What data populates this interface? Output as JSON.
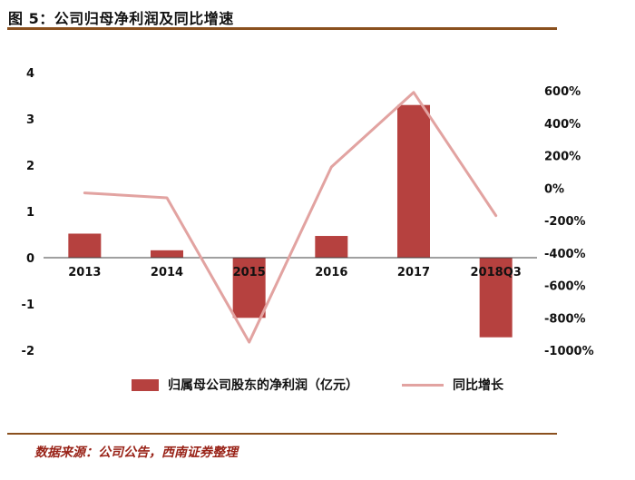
{
  "header": {
    "title": "图 5：公司归母净利润及同比增速"
  },
  "theme": {
    "rule_color": "#8a501e",
    "source_text_color": "#992318"
  },
  "chart_data": {
    "type": "bar+line",
    "title": "公司归母净利润及同比增速",
    "categories": [
      "2013",
      "2014",
      "2015",
      "2016",
      "2017",
      "2018Q3"
    ],
    "series": [
      {
        "name": "归属母公司股东的净利润（亿元）",
        "type": "bar",
        "axis": "left",
        "values": [
          0.52,
          0.16,
          -1.3,
          0.47,
          3.3,
          -1.72
        ]
      },
      {
        "name": "同比增长",
        "type": "line",
        "axis": "right",
        "unit": "%",
        "values": [
          -30,
          -60,
          -950,
          130,
          590,
          -170
        ]
      }
    ],
    "left_axis": {
      "min": -2,
      "max": 4,
      "ticks": [
        4,
        3,
        2,
        1,
        0,
        -1,
        -2
      ]
    },
    "right_axis": {
      "min": -1000,
      "max": 600,
      "tick_labels": [
        "600%",
        "400%",
        "200%",
        "0%",
        "-200%",
        "-400%",
        "-600%",
        "-800%",
        "-1000%"
      ]
    },
    "legend_position": "bottom",
    "grid": false,
    "colors": {
      "bar": "#b6413f",
      "line": "#e2a3a1"
    }
  },
  "legend": {
    "bar_label": "归属母公司股东的净利润（亿元）",
    "line_label": "同比增长"
  },
  "footer": {
    "source": "数据来源：公司公告，西南证券整理"
  }
}
